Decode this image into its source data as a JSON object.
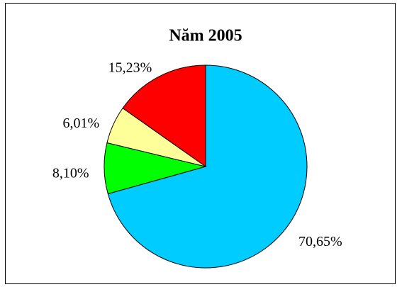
{
  "chart_data": {
    "type": "pie",
    "title": "Năm 2005",
    "values": [
      70.65,
      8.1,
      6.01,
      15.23
    ],
    "value_labels": [
      "70,65%",
      "8,10%",
      "6,01%",
      "15,23%"
    ],
    "colors": [
      "#00ccff",
      "#00ff00",
      "#ffff99",
      "#ff0000"
    ]
  }
}
